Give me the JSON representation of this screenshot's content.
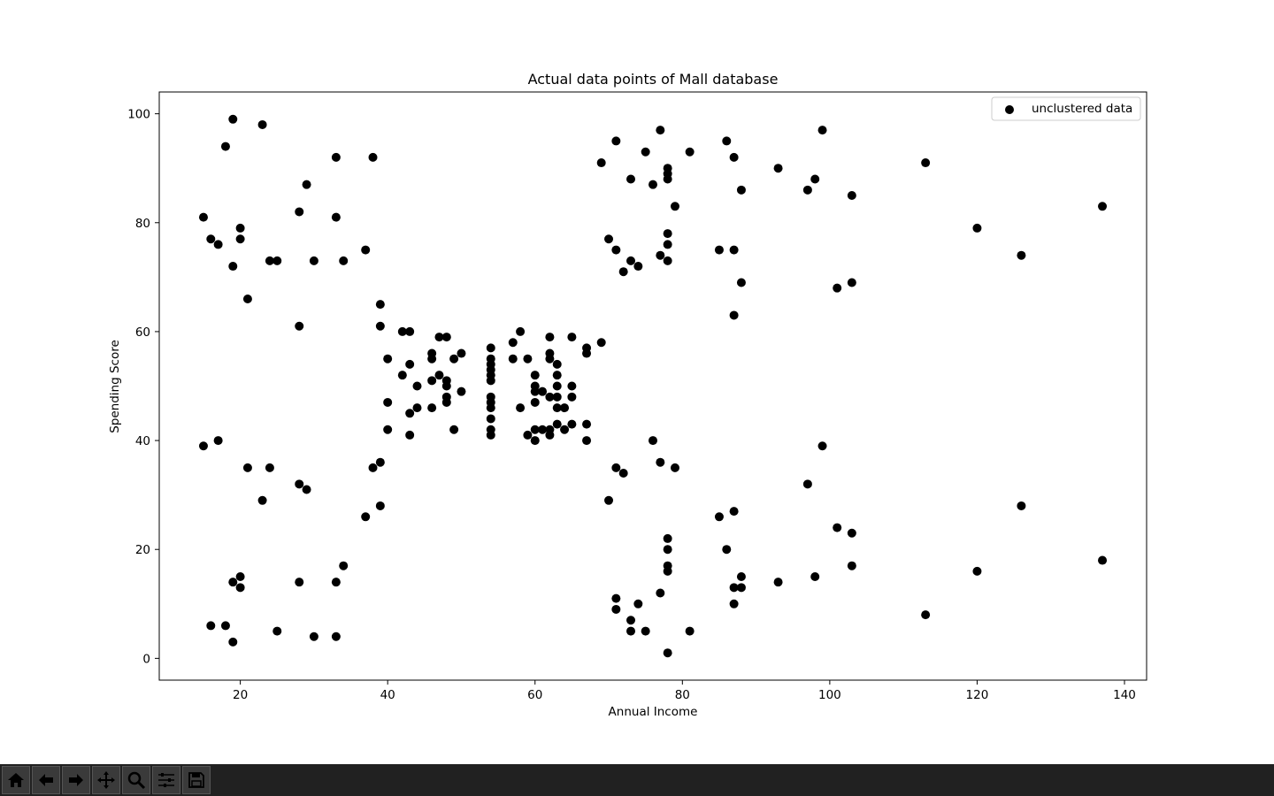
{
  "chart_data": {
    "type": "scatter",
    "title": "Actual data points of Mall database",
    "xlabel": "Annual Income",
    "ylabel": "Spending Score",
    "xlim": [
      9,
      143
    ],
    "ylim": [
      -4,
      104
    ],
    "xticks": [
      20,
      40,
      60,
      80,
      100,
      120,
      140
    ],
    "yticks": [
      0,
      20,
      40,
      60,
      80,
      100
    ],
    "grid": false,
    "legend_position": "top-right",
    "series": [
      {
        "name": "unclustered data",
        "color": "#000000",
        "points": [
          [
            15,
            39
          ],
          [
            15,
            81
          ],
          [
            16,
            6
          ],
          [
            16,
            77
          ],
          [
            17,
            40
          ],
          [
            17,
            76
          ],
          [
            18,
            6
          ],
          [
            18,
            94
          ],
          [
            19,
            3
          ],
          [
            19,
            72
          ],
          [
            19,
            14
          ],
          [
            19,
            99
          ],
          [
            20,
            15
          ],
          [
            20,
            77
          ],
          [
            20,
            13
          ],
          [
            20,
            79
          ],
          [
            21,
            35
          ],
          [
            21,
            66
          ],
          [
            23,
            29
          ],
          [
            23,
            98
          ],
          [
            24,
            35
          ],
          [
            24,
            73
          ],
          [
            25,
            5
          ],
          [
            25,
            73
          ],
          [
            28,
            14
          ],
          [
            28,
            82
          ],
          [
            28,
            32
          ],
          [
            28,
            61
          ],
          [
            29,
            31
          ],
          [
            29,
            87
          ],
          [
            30,
            4
          ],
          [
            30,
            73
          ],
          [
            33,
            4
          ],
          [
            33,
            92
          ],
          [
            33,
            14
          ],
          [
            33,
            81
          ],
          [
            34,
            17
          ],
          [
            34,
            73
          ],
          [
            37,
            26
          ],
          [
            37,
            75
          ],
          [
            38,
            35
          ],
          [
            38,
            92
          ],
          [
            39,
            36
          ],
          [
            39,
            61
          ],
          [
            39,
            28
          ],
          [
            39,
            65
          ],
          [
            40,
            55
          ],
          [
            40,
            47
          ],
          [
            40,
            42
          ],
          [
            42,
            52
          ],
          [
            42,
            60
          ],
          [
            43,
            54
          ],
          [
            43,
            60
          ],
          [
            43,
            45
          ],
          [
            43,
            41
          ],
          [
            44,
            50
          ],
          [
            44,
            46
          ],
          [
            46,
            51
          ],
          [
            46,
            46
          ],
          [
            46,
            56
          ],
          [
            46,
            55
          ],
          [
            47,
            52
          ],
          [
            47,
            59
          ],
          [
            48,
            51
          ],
          [
            48,
            59
          ],
          [
            48,
            50
          ],
          [
            48,
            48
          ],
          [
            48,
            47
          ],
          [
            49,
            55
          ],
          [
            49,
            42
          ],
          [
            50,
            49
          ],
          [
            50,
            56
          ],
          [
            54,
            47
          ],
          [
            54,
            54
          ],
          [
            54,
            53
          ],
          [
            54,
            48
          ],
          [
            54,
            52
          ],
          [
            54,
            42
          ],
          [
            54,
            51
          ],
          [
            54,
            55
          ],
          [
            54,
            41
          ],
          [
            54,
            44
          ],
          [
            54,
            57
          ],
          [
            54,
            46
          ],
          [
            57,
            58
          ],
          [
            57,
            55
          ],
          [
            58,
            60
          ],
          [
            58,
            46
          ],
          [
            59,
            55
          ],
          [
            59,
            41
          ],
          [
            60,
            49
          ],
          [
            60,
            40
          ],
          [
            60,
            42
          ],
          [
            60,
            52
          ],
          [
            60,
            47
          ],
          [
            60,
            50
          ],
          [
            61,
            42
          ],
          [
            61,
            49
          ],
          [
            62,
            41
          ],
          [
            62,
            48
          ],
          [
            62,
            59
          ],
          [
            62,
            55
          ],
          [
            62,
            56
          ],
          [
            62,
            42
          ],
          [
            63,
            50
          ],
          [
            63,
            46
          ],
          [
            63,
            43
          ],
          [
            63,
            48
          ],
          [
            63,
            52
          ],
          [
            63,
            54
          ],
          [
            64,
            42
          ],
          [
            64,
            46
          ],
          [
            65,
            48
          ],
          [
            65,
            50
          ],
          [
            65,
            43
          ],
          [
            65,
            59
          ],
          [
            67,
            43
          ],
          [
            67,
            57
          ],
          [
            67,
            56
          ],
          [
            67,
            40
          ],
          [
            69,
            58
          ],
          [
            69,
            91
          ],
          [
            70,
            29
          ],
          [
            70,
            77
          ],
          [
            71,
            35
          ],
          [
            71,
            95
          ],
          [
            71,
            11
          ],
          [
            71,
            75
          ],
          [
            71,
            9
          ],
          [
            72,
            34
          ],
          [
            72,
            71
          ],
          [
            73,
            5
          ],
          [
            73,
            88
          ],
          [
            73,
            7
          ],
          [
            73,
            73
          ],
          [
            74,
            10
          ],
          [
            74,
            72
          ],
          [
            75,
            5
          ],
          [
            75,
            93
          ],
          [
            76,
            40
          ],
          [
            76,
            87
          ],
          [
            77,
            12
          ],
          [
            77,
            97
          ],
          [
            77,
            36
          ],
          [
            77,
            74
          ],
          [
            78,
            22
          ],
          [
            78,
            90
          ],
          [
            78,
            17
          ],
          [
            78,
            88
          ],
          [
            78,
            20
          ],
          [
            78,
            76
          ],
          [
            78,
            16
          ],
          [
            78,
            89
          ],
          [
            78,
            1
          ],
          [
            78,
            78
          ],
          [
            78,
            73
          ],
          [
            79,
            35
          ],
          [
            79,
            83
          ],
          [
            81,
            5
          ],
          [
            81,
            93
          ],
          [
            85,
            26
          ],
          [
            85,
            75
          ],
          [
            86,
            20
          ],
          [
            86,
            95
          ],
          [
            87,
            27
          ],
          [
            87,
            63
          ],
          [
            87,
            13
          ],
          [
            87,
            75
          ],
          [
            87,
            10
          ],
          [
            87,
            92
          ],
          [
            88,
            13
          ],
          [
            88,
            86
          ],
          [
            88,
            15
          ],
          [
            88,
            69
          ],
          [
            93,
            14
          ],
          [
            93,
            90
          ],
          [
            97,
            32
          ],
          [
            97,
            86
          ],
          [
            98,
            15
          ],
          [
            98,
            88
          ],
          [
            99,
            39
          ],
          [
            99,
            97
          ],
          [
            101,
            24
          ],
          [
            101,
            68
          ],
          [
            103,
            17
          ],
          [
            103,
            85
          ],
          [
            103,
            23
          ],
          [
            103,
            69
          ],
          [
            113,
            8
          ],
          [
            113,
            91
          ],
          [
            120,
            16
          ],
          [
            120,
            79
          ],
          [
            126,
            28
          ],
          [
            126,
            74
          ],
          [
            137,
            18
          ],
          [
            137,
            83
          ]
        ]
      }
    ]
  },
  "toolbar": {
    "buttons": [
      {
        "icon": "home-icon"
      },
      {
        "icon": "back-arrow-icon"
      },
      {
        "icon": "forward-arrow-icon"
      },
      {
        "icon": "pan-move-icon"
      },
      {
        "icon": "zoom-magnifier-icon"
      },
      {
        "icon": "configure-subplots-icon"
      },
      {
        "icon": "save-floppy-icon"
      }
    ]
  }
}
